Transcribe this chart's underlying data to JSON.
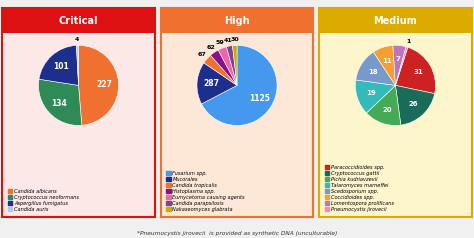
{
  "critical": {
    "title": "Critical",
    "title_bg": "#dd1111",
    "panel_bg": "#fde8e8",
    "border_color": "#dd1111",
    "values": [
      227,
      134,
      101,
      4
    ],
    "labels": [
      "227",
      "134",
      "101",
      "4"
    ],
    "colors": [
      "#f07030",
      "#2e8b57",
      "#1c2f8c",
      "#aacce8"
    ],
    "legend": [
      "Candida albicans",
      "Cryptococcus neoformans",
      "Aspergillus fumigatus",
      "Candida auris"
    ],
    "startangle": 90,
    "label_outside": [
      3
    ]
  },
  "high": {
    "title": "High",
    "title_bg": "#f07030",
    "panel_bg": "#fde8d8",
    "border_color": "#f07030",
    "values": [
      1125,
      287,
      67,
      62,
      59,
      41,
      30
    ],
    "labels": [
      "1125",
      "287",
      "67",
      "62",
      "59",
      "41",
      "30"
    ],
    "colors": [
      "#4499ee",
      "#1c2f8c",
      "#f07030",
      "#881188",
      "#ee66aa",
      "#774499",
      "#ccaa00"
    ],
    "legend": [
      "Fusarium spp.",
      "Mucorales",
      "Candida tropicalis",
      "Histoplasma spp.",
      "Eumycetoma causing agents",
      "Candida parapsilosis",
      "Nakaseomyces glabrata"
    ],
    "startangle": 90,
    "label_outside": [
      2,
      3,
      4,
      5,
      6
    ]
  },
  "medium": {
    "title": "Medium",
    "title_bg": "#ddaa00",
    "panel_bg": "#fdf5cc",
    "border_color": "#ddaa00",
    "values": [
      31,
      26,
      20,
      19,
      18,
      11,
      7,
      1
    ],
    "labels": [
      "31",
      "26",
      "20",
      "19",
      "18",
      "11",
      "7",
      "1"
    ],
    "colors": [
      "#cc2222",
      "#1a6b5a",
      "#44aa55",
      "#33bbbb",
      "#7799cc",
      "#f4a030",
      "#bb77bb",
      "#ff88bb"
    ],
    "legend": [
      "Paracoccidioides spp.",
      "Cryptococcus gattii",
      "Pichia kudriavzevii",
      "Talaromyces marneffei",
      "Scedosporium spp.",
      "Coccidioides spp.",
      "Lomentospora prolificans",
      "Pneumocystis jirovecii"
    ],
    "startangle": 72,
    "label_outside": [
      7
    ]
  },
  "footnote": "*Pneumocystis jirovecii  is provided as synthetic DNA (unculturable)"
}
